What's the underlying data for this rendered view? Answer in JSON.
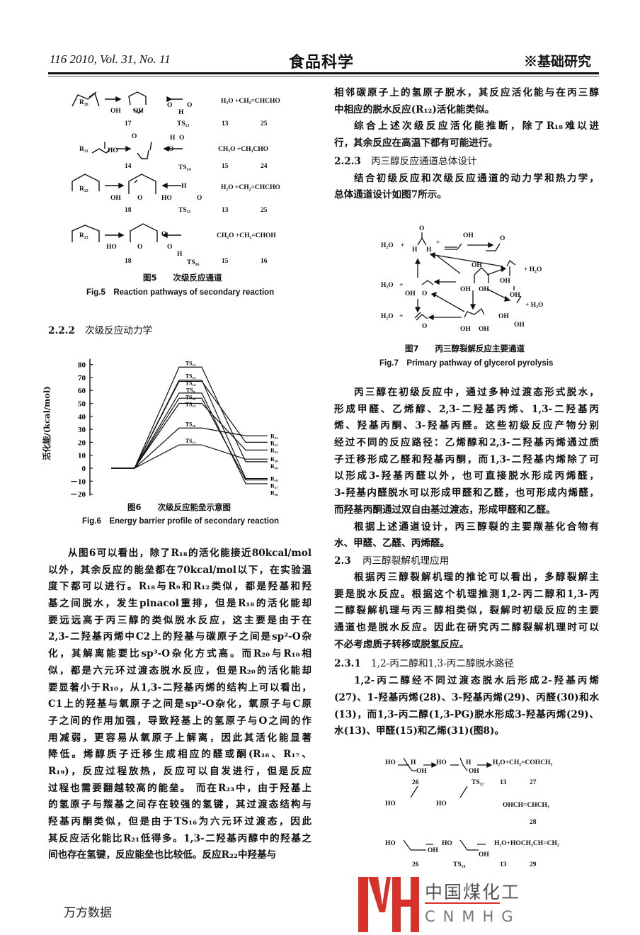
{
  "header": {
    "left": "116   2010, Vol. 31, No. 11",
    "journal": "食品科学",
    "section": "※基础研究"
  },
  "fig5": {
    "rows": [
      {
        "label": "R₂₀",
        "reactant": "17",
        "ts": "TS₁₃",
        "products": "H₂O +CH₂=CHCHO",
        "p1": "13",
        "p2": "25",
        "atoms": [
          "OH",
          "OH",
          "O",
          "O",
          "H"
        ]
      },
      {
        "label": "R₂₁",
        "reactant": "14",
        "ts": "TS₁₄",
        "products": "CH₂O +CH₃CHO",
        "p1": "15",
        "p2": "24",
        "atoms": [
          "HO",
          "O",
          "H",
          "O",
          "O",
          "O"
        ]
      },
      {
        "label": "R₂₂",
        "reactant": "18",
        "ts": "TS₁₅",
        "products": "H₂O +CH₂=CHCHO",
        "p1": "13",
        "p2": "25",
        "atoms": [
          "OH",
          "O",
          "HO",
          "O",
          "H"
        ]
      },
      {
        "label": "R₂₃",
        "reactant": "18",
        "ts": "TS₁₆",
        "products": "CH₂O +CH₂=CHOH",
        "p1": "15",
        "p2": "16",
        "atoms": [
          "HO",
          "O",
          "O",
          "O",
          "H"
        ]
      }
    ],
    "caption_cn": "图5　　次级反应通道",
    "caption_en": "Fig.5　Reaction pathways of secondary reaction"
  },
  "left": {
    "heading_num": "2.2.2",
    "heading": "次级反应动力学",
    "para": [
      "从图6可以看出，除了R₁₈的活化能接近80kcal/mol",
      "以外，其余反应的能垒都在70kcal/mol以下，在实验温",
      "度下都可以进行。R₁₈与R₉和R₁₂类似，都是羟基和羟",
      "基之间脱水，发生pinacol重排，但是R₁₈的活化能却",
      "要远远高于丙三醇的类似脱水反应，这主要是由于在",
      "2,3-二羟基丙烯中C2上的羟基与碳原子之间是sp²-O杂",
      "化，其解离能要比sp³-O杂化方式高。而R₂₀与R₁₀相",
      "似，都是六元环过渡态脱水反应，但是R₂₀的活化能却",
      "要显著小于R₁₀，从1,3-二羟基丙烯的结构上可以看出，",
      "C1上的羟基与氧原子之间是sp²-O杂化，氧原子与C原",
      "子之间的作用加强，导致羟基上的氢原子与O之间的作",
      "用减弱，更容易从氧原子上解离，因此其活化能显著",
      "降低。烯醇质子迁移生成相应的醛或酮(R₁₆、R₁₇、",
      "R₁₉)，反应过程放热，反应可以自发进行，但是反应",
      "过程也需要翻越较高的能垒。 而在R₂₃中，由于羟基上",
      "的氢原子与羰基之间存在较强的氢键，其过渡态结构与",
      "羟基丙酮类似，但是由于TS₁₆为六元环过渡态，因此",
      "其反应活化能比R₂₁低得多。1,3-二羟基丙醇中的羟基之",
      "间也存在氢键，反应能垒也比较低。反应R₂₂中羟基与"
    ]
  },
  "chart_data": {
    "type": "line",
    "title": "",
    "ylabel": "活化能/(kcal/mol)",
    "xlabel": "",
    "ylim": [
      -20,
      80
    ],
    "yticks": [
      "80",
      "70",
      "60",
      "50",
      "40",
      "30",
      "20",
      "10",
      "0",
      "－10",
      "－20"
    ],
    "ytick_values": [
      80,
      70,
      60,
      50,
      40,
      30,
      20,
      10,
      0,
      -10,
      -20
    ],
    "stages": [
      "reactant",
      "transition state",
      "product"
    ],
    "series": [
      {
        "ts": "TS₁₁",
        "product": "R₁₈",
        "values": [
          0,
          78,
          5
        ]
      },
      {
        "ts": "TS₁₂",
        "product": "R₁₉",
        "values": [
          0,
          68,
          -8
        ]
      },
      {
        "ts": "TS₁₄",
        "product": "R₂₁",
        "values": [
          0,
          67,
          20
        ]
      },
      {
        "ts": "TS₉",
        "product": "R₁₆",
        "values": [
          0,
          58,
          -12
        ]
      },
      {
        "ts": "TS₁₀",
        "product": "R₁₇",
        "values": [
          0,
          54,
          -9
        ]
      },
      {
        "ts": "TS₁₅",
        "product": "R₂₂",
        "values": [
          0,
          50,
          14
        ]
      },
      {
        "ts": "TS₁₆",
        "product": "R₂₃",
        "values": [
          0,
          31,
          25
        ]
      },
      {
        "ts": "TS₁₃",
        "product": "R₂₀",
        "values": [
          0,
          18,
          7
        ]
      }
    ],
    "caption_cn": "图6　　次级反应能垒示意图",
    "caption_en": "Fig.6　Energy barrier profile of secondary reaction"
  },
  "right": {
    "para1": [
      "相邻碳原子上的氢原子脱水，其反应活化能与在丙三醇",
      "中相应的脱水反应(R₁₂)活化能类似。"
    ],
    "para2": [
      "综合上述次级反应活化能推断，除了R₁₈难以进",
      "行，其余反应在高温下都有可能进行。"
    ],
    "heading1_num": "2.2.3",
    "heading1": "丙三醇反应通道总体设计",
    "para3": [
      "结合初级反应和次级反应通道的动力学和热力学，",
      "总体通道设计如图7所示。"
    ],
    "para4": [
      "丙三醇在初级反应中，通过多种过渡态形式脱水，",
      "形成甲醛、乙烯醇、2,3-二羟基丙烯、1,3-二羟基丙",
      "烯、羟基丙酮、3-羟基丙醛。这些初级反应产物分别",
      "经过不同的反应路径：乙烯醇和2,3-二羟基丙烯通过质",
      "子迁移形成乙醛和羟基丙酮，而1,3-二羟基内烯除了可",
      "以形成3-羟基丙醛以外，也可直接脱水形成丙烯醛，",
      "3-羟基内醛脱水可以形成甲醛和乙醛，也可形成内烯醛，",
      "而羟基丙酮通过双自由基过渡态，形成甲醛和乙醛。"
    ],
    "para5": [
      "根据上述通道设计，丙三醇裂的主要羰基化合物有",
      "水、甲醛、乙醛、丙烯醛。"
    ],
    "heading2_num": "2.3",
    "heading2": "丙三醇裂解机理应用",
    "para6": [
      "根据丙三醇裂解机理的推论可以看出，多醇裂解主",
      "要是脱水反应。根据这个机理推测1,2-丙二醇和1,3-丙",
      "二醇裂解机理与丙三醇相类似，裂解时初级反应的主要",
      "通道也是脱水反应。因此在研究丙二醇裂解机理时可以",
      "不必考虑质子转移或脱氢反应。"
    ],
    "heading3_num": "2.3.1",
    "heading3": "1,2-丙二醇和1,3-丙二醇脱水路径",
    "para7": [
      "1,2-丙二醇经不同过渡态脱水后形成2-羟基丙烯",
      "(27)、1-羟基丙烯(28)、3-羟基丙烯(29)、丙醛(30)和水",
      "(13)，而1,3-丙二醇(1,3-PG)脱水形成3-羟基丙烯(29)、",
      "水(13)、甲醛(15)和乙烯(31)(图8)。"
    ]
  },
  "fig7": {
    "labels": [
      "H₂O",
      "+",
      "O",
      "H",
      "H",
      "+",
      "OH",
      "O",
      "OH",
      "+ H₂O",
      "H₂O",
      "+",
      "OH",
      "O",
      "OH",
      "OH",
      "OH",
      "OH",
      "OH",
      "+ H₂O",
      "H₂O",
      "+",
      "O",
      "OH",
      "OH",
      "OH"
    ],
    "caption_cn": "图7　　丙三醇裂解反应主要通道",
    "caption_en": "Fig.7　Primary pathway of glycerol pyrolysis"
  },
  "fig8": {
    "rows": [
      {
        "reactant": "HO",
        "oh": "OH",
        "h": "H",
        "ts_pre": "HO",
        "ts_oh": "OH",
        "ts_h": "H",
        "products": "H₂O+CH₂=COHCH₃",
        "n1": "26",
        "ts": "TS₁₇",
        "n2": "13",
        "n3": "27"
      },
      {
        "reactant": "HO",
        "oh": "",
        "h": "",
        "ts_pre": "HO",
        "ts_oh": "",
        "ts_h": "",
        "products": "OHCH=CHCH₃",
        "n1": "",
        "ts": "",
        "n2": "",
        "n3": "28"
      },
      {
        "reactant": "HO",
        "oh": "OH",
        "h": "",
        "ts_pre": "HO",
        "ts_oh": "OH",
        "ts_h": "",
        "products": "H₂O+HOCH₂CH=CH₂",
        "n1": "26",
        "ts": "TS₁₉",
        "n2": "13",
        "n3": "29"
      }
    ]
  },
  "watermark": {
    "cn": "中国煤化工",
    "en": "CNMHG",
    "logo_color": "#d8312a"
  },
  "footer": "万方数据"
}
